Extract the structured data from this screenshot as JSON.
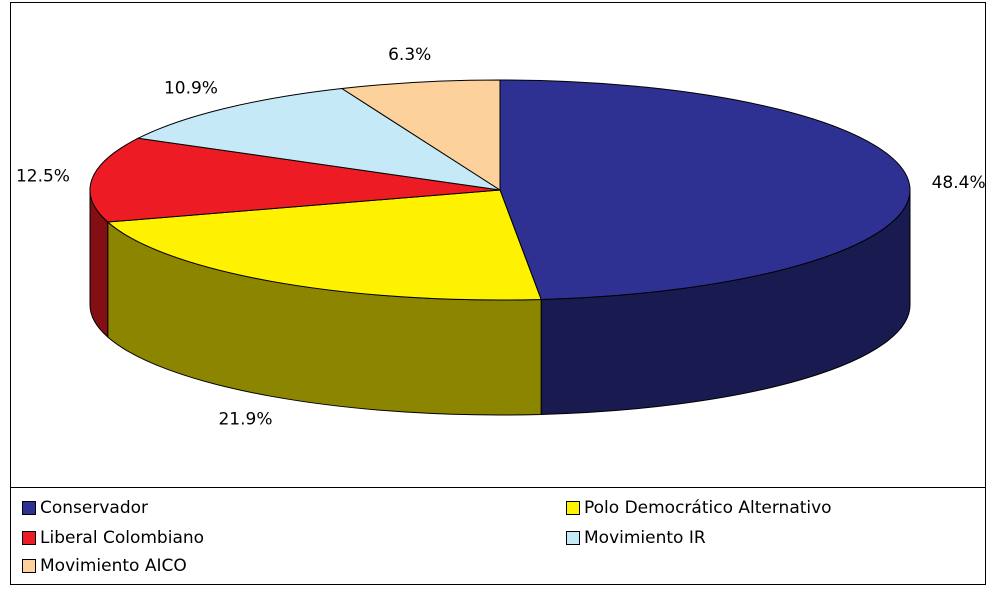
{
  "chart_data": {
    "type": "pie",
    "categories": [
      "Conservador",
      "Polo Democrático Alternativo",
      "Liberal Colombiano",
      "Movimiento IR",
      "Movimiento AICO"
    ],
    "values": [
      48.4,
      21.9,
      12.5,
      10.9,
      6.3
    ],
    "value_labels": [
      "48.4%",
      "21.9%",
      "12.5%",
      "10.9%",
      "6.3%"
    ],
    "colors": [
      "#2e3192",
      "#fff200",
      "#ed1c24",
      "#c6e9f8",
      "#fdd19c"
    ],
    "legend": "bottom"
  }
}
